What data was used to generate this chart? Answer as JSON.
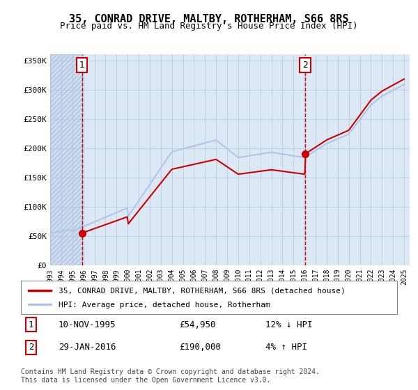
{
  "title": "35, CONRAD DRIVE, MALTBY, ROTHERHAM, S66 8RS",
  "subtitle": "Price paid vs. HM Land Registry's House Price Index (HPI)",
  "sale1_date": "1995-11-10",
  "sale1_price": 54950,
  "sale1_label": "1",
  "sale2_date": "2016-01-29",
  "sale2_price": 190000,
  "sale2_label": "2",
  "legend_line1": "35, CONRAD DRIVE, MALTBY, ROTHERHAM, S66 8RS (detached house)",
  "legend_line2": "HPI: Average price, detached house, Rotherham",
  "table_row1": [
    "1",
    "10-NOV-1995",
    "£54,950",
    "12% ↓ HPI"
  ],
  "table_row2": [
    "2",
    "29-JAN-2016",
    "£190,000",
    "4% ↑ HPI"
  ],
  "footnote": "Contains HM Land Registry data © Crown copyright and database right 2024.\nThis data is licensed under the Open Government Licence v3.0.",
  "ylim": [
    0,
    360000
  ],
  "yticks": [
    0,
    50000,
    100000,
    150000,
    200000,
    250000,
    300000,
    350000
  ],
  "ytick_labels": [
    "£0",
    "£50K",
    "£100K",
    "£150K",
    "£200K",
    "£250K",
    "£300K",
    "£350K"
  ],
  "hpi_color": "#aec6e8",
  "price_color": "#cc0000",
  "vline_color": "#cc0000",
  "bg_color": "#dce9f5",
  "hatch_color": "#c8d8eb",
  "grid_color": "#b0c4de",
  "point_color": "#cc0000",
  "box_border_color": "#cc0000"
}
